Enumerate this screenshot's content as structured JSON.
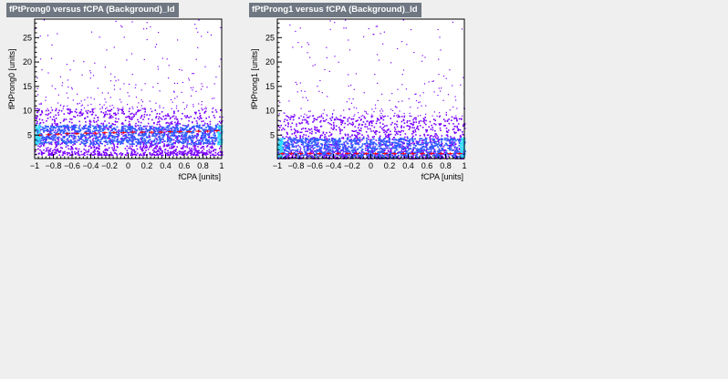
{
  "canvas": {
    "background": "#efefef"
  },
  "chart_data": [
    {
      "type": "heatmap",
      "title": "fPtProng0 versus fCPA (Background)_ld",
      "xlabel": "fCPA  [units]",
      "ylabel": "fPtProng0  [units]",
      "xlim": [
        -1,
        1
      ],
      "ylim": [
        0.2,
        28.8
      ],
      "x_ticks": [
        -1,
        -0.8,
        -0.6,
        -0.4,
        -0.2,
        0,
        0.2,
        0.4,
        0.6,
        0.8,
        1
      ],
      "x_tick_labels": [
        "−1",
        "−0.8",
        "−0.6",
        "−0.4",
        "−0.2",
        "0",
        "0.2",
        "0.4",
        "0.6",
        "0.8",
        "1"
      ],
      "y_ticks": [
        5,
        10,
        15,
        20,
        25
      ],
      "y_tick_labels": [
        "5",
        "10",
        "15",
        "20",
        "25"
      ],
      "colors": {
        "sparse": "#7a00ff",
        "mid": "#2f5fff",
        "dense": "#35e0ff",
        "profile": "#ff0000"
      },
      "density_band": {
        "y_core": [
          3.2,
          7.2
        ],
        "y_halo": [
          1.0,
          10.5
        ],
        "edge_enhanced": true
      },
      "profile": {
        "x": [
          -0.95,
          -0.85,
          -0.75,
          -0.65,
          -0.55,
          -0.45,
          -0.35,
          -0.25,
          -0.15,
          -0.05,
          0.05,
          0.15,
          0.25,
          0.35,
          0.45,
          0.55,
          0.65,
          0.75,
          0.85,
          0.95
        ],
        "y": [
          5.0,
          5.1,
          5.2,
          5.3,
          5.3,
          5.4,
          5.4,
          5.5,
          5.5,
          5.5,
          5.6,
          5.6,
          5.6,
          5.6,
          5.7,
          5.7,
          5.7,
          5.8,
          5.8,
          5.9
        ]
      }
    },
    {
      "type": "heatmap",
      "title": "fPtProng1 versus fCPA (Background)_ld",
      "xlabel": "fCPA  [units]",
      "ylabel": "fPtProng1  [units]",
      "xlim": [
        -1,
        1
      ],
      "ylim": [
        0.2,
        28.8
      ],
      "x_ticks": [
        -1,
        -0.8,
        -0.6,
        -0.4,
        -0.2,
        0,
        0.2,
        0.4,
        0.6,
        0.8,
        1
      ],
      "x_tick_labels": [
        "−1",
        "−0.8",
        "−0.6",
        "−0.4",
        "−0.2",
        "0",
        "0.2",
        "0.4",
        "0.6",
        "0.8",
        "1"
      ],
      "y_ticks": [
        5,
        10,
        15,
        20,
        25
      ],
      "y_tick_labels": [
        "5",
        "10",
        "15",
        "20",
        "25"
      ],
      "colors": {
        "sparse": "#7a00ff",
        "mid": "#2f5fff",
        "dense": "#35e0ff",
        "profile": "#ff0000"
      },
      "density_band": {
        "y_core": [
          0.5,
          4.5
        ],
        "y_halo": [
          0.3,
          9.0
        ],
        "edge_enhanced": true
      },
      "profile": {
        "x": [
          -0.95,
          -0.85,
          -0.75,
          -0.65,
          -0.55,
          -0.45,
          -0.35,
          -0.25,
          -0.15,
          -0.05,
          0.05,
          0.15,
          0.25,
          0.35,
          0.45,
          0.55,
          0.65,
          0.75,
          0.85,
          0.95
        ],
        "y": [
          1.2,
          1.2,
          1.2,
          1.2,
          1.2,
          1.2,
          1.2,
          1.2,
          1.2,
          1.2,
          1.2,
          1.2,
          1.2,
          1.2,
          1.2,
          1.2,
          1.2,
          1.2,
          1.2,
          1.2
        ]
      }
    }
  ]
}
